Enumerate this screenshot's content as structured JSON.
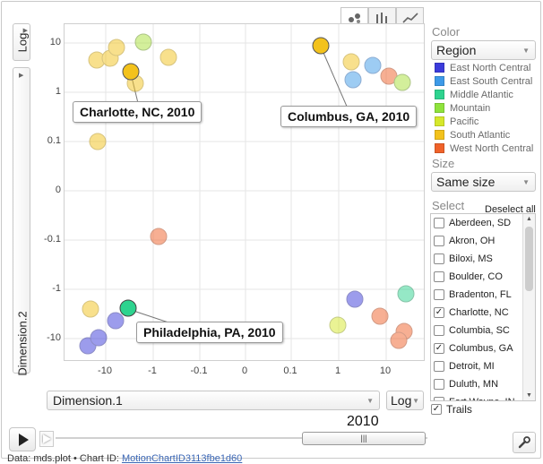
{
  "chart": {
    "type_tabs": [
      "bubbles",
      "bars",
      "lines"
    ],
    "active_tab": "bubbles",
    "y_scale": {
      "label": "Log"
    },
    "y_field": {
      "label": "Dimension.2"
    },
    "y_ticks": [
      "10",
      "1",
      "0.1",
      "0",
      "-0.1",
      "-1",
      "-10"
    ],
    "x_ticks": [
      "-10",
      "-1",
      "-0.1",
      "0",
      "0.1",
      "1",
      "10"
    ],
    "x_field": {
      "label": "Dimension.1"
    },
    "x_scale": {
      "label": "Log"
    },
    "labels": {
      "charlotte": "Charlotte, NC, 2010",
      "columbus": "Columbus, GA, 2010",
      "philadelphia": "Philadelphia, PA, 2010"
    }
  },
  "panel": {
    "color_label": "Color",
    "color_value": "Region",
    "legend": [
      {
        "name": "East North Central",
        "color": "#3b3bdb"
      },
      {
        "name": "East South Central",
        "color": "#3d9ae8"
      },
      {
        "name": "Middle Atlantic",
        "color": "#2ed38f"
      },
      {
        "name": "Mountain",
        "color": "#8fe33c"
      },
      {
        "name": "Pacific",
        "color": "#d6e82b"
      },
      {
        "name": "South Atlantic",
        "color": "#f3c21c"
      },
      {
        "name": "West North Central",
        "color": "#f0622a"
      }
    ],
    "size_label": "Size",
    "size_value": "Same size",
    "select_label": "Select",
    "deselect_all": "Deselect all",
    "select_items": [
      {
        "name": "Aberdeen, SD",
        "checked": false
      },
      {
        "name": "Akron, OH",
        "checked": false
      },
      {
        "name": "Biloxi, MS",
        "checked": false
      },
      {
        "name": "Boulder, CO",
        "checked": false
      },
      {
        "name": "Bradenton, FL",
        "checked": false
      },
      {
        "name": "Charlotte, NC",
        "checked": true
      },
      {
        "name": "Columbia, SC",
        "checked": false
      },
      {
        "name": "Columbus, GA",
        "checked": true
      },
      {
        "name": "Detroit, MI",
        "checked": false
      },
      {
        "name": "Duluth, MN",
        "checked": false
      },
      {
        "name": "Fort Wayne, IN",
        "checked": false
      }
    ],
    "trails_label": "Trails",
    "trails_checked": true
  },
  "timeline": {
    "year": "2010"
  },
  "footer": {
    "prefix": "Data: mds.plot • Chart ID: ",
    "chart_id": "MotionChartID3113fbe1d60"
  }
}
